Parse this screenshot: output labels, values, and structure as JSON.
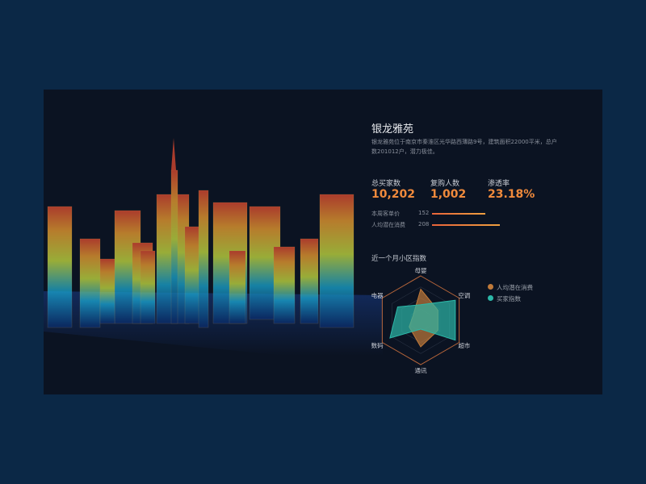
{
  "title": "银龙雅苑",
  "description": "银龙雅苑位于南京市秦淮区光华路西薄路9号，建筑面积22000平米，总户数201012户，潜力极佳。",
  "kpis": [
    {
      "label": "总买家数",
      "value": "10,202"
    },
    {
      "label": "复购人数",
      "value": "1,002"
    },
    {
      "label": "渗透率",
      "value": "23.18%"
    }
  ],
  "bars": [
    {
      "label": "本周客单价",
      "value": "152"
    },
    {
      "label": "人均潜在消费",
      "value": "208"
    }
  ],
  "radar": {
    "title": "近一个月小区指数",
    "axes": [
      "母婴",
      "空调",
      "超市",
      "通讯",
      "数码",
      "电器"
    ],
    "series": [
      {
        "name": "人均潜在消费",
        "color": "#c07a3a",
        "values": [
          0.7,
          0.45,
          0.45,
          0.6,
          0.3,
          0.2
        ]
      },
      {
        "name": "买家指数",
        "color": "#2cb8a8",
        "values": [
          0.35,
          0.9,
          0.9,
          0.2,
          0.8,
          0.6
        ]
      }
    ]
  }
}
